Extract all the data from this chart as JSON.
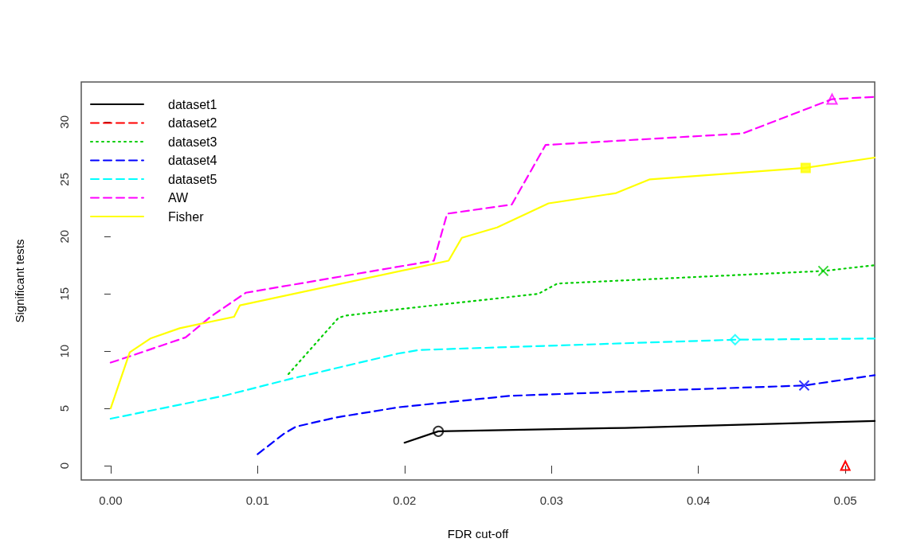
{
  "chart_data": {
    "type": "line",
    "xlabel": "FDR cut-off",
    "ylabel": "Significant tests",
    "xlim": [
      -0.002,
      0.052
    ],
    "xticks": [
      {
        "value": 0,
        "label": "0.00"
      },
      {
        "value": 0.01,
        "label": "0.01"
      },
      {
        "value": 0.02,
        "label": "0.02"
      },
      {
        "value": 0.03,
        "label": "0.03"
      },
      {
        "value": 0.04,
        "label": "0.04"
      },
      {
        "value": 0.05,
        "label": "0.05"
      }
    ],
    "ylim": [
      -1.25,
      33.5
    ],
    "yticks": [
      0,
      5,
      10,
      15,
      20,
      25,
      30
    ],
    "grid": false,
    "legend": "top left",
    "series": [
      {
        "name": "dataset1",
        "color": "#000000",
        "line_style": "solid",
        "x": [
          0.02,
          0.0223,
          0.035,
          0.052
        ],
        "values": [
          2,
          3,
          3.3,
          3.9
        ]
      },
      {
        "name": "dataset2",
        "color": "#ff0000",
        "line_style": "dashed",
        "marker": "triangle",
        "x": [
          0.05
        ],
        "values": [
          0
        ]
      },
      {
        "name": "dataset3",
        "color": "#00cd00",
        "line_style": "dotted",
        "x": [
          0.0121,
          0.0155,
          0.016,
          0.0199,
          0.0291,
          0.0304,
          0.0485,
          0.052
        ],
        "values": [
          8,
          12.9,
          13.1,
          13.7,
          15,
          15.9,
          17,
          17.5
        ]
      },
      {
        "name": "dataset4",
        "color": "#0000ff",
        "line_style": "dashed",
        "x": [
          0.01,
          0.0118,
          0.0126,
          0.0153,
          0.0196,
          0.0272,
          0.0359,
          0.0472,
          0.052
        ],
        "values": [
          1,
          2.8,
          3.4,
          4.2,
          5.1,
          6.1,
          6.5,
          7,
          7.9
        ]
      },
      {
        "name": "dataset5",
        "color": "#00ffff",
        "line_style": "dashed",
        "x": [
          0,
          0.0077,
          0.012,
          0.0196,
          0.021,
          0.0425,
          0.052
        ],
        "values": [
          4.1,
          6.1,
          7.5,
          9.8,
          10.1,
          11,
          11.1
        ]
      },
      {
        "name": "AW",
        "color": "#ff00ff",
        "line_style": "dashed",
        "x": [
          0,
          0.0012,
          0.0051,
          0.0068,
          0.0092,
          0.022,
          0.0229,
          0.0273,
          0.0296,
          0.043,
          0.0491,
          0.052
        ],
        "values": [
          9,
          9.5,
          11.2,
          13,
          15.1,
          17.9,
          22,
          22.8,
          28,
          29,
          32,
          32.2
        ]
      },
      {
        "name": "Fisher",
        "color": "#ffff00",
        "line_style": "solid",
        "x": [
          0,
          0.0013,
          0.0027,
          0.0047,
          0.0084,
          0.0088,
          0.023,
          0.0239,
          0.0263,
          0.0298,
          0.0344,
          0.0367,
          0.0473,
          0.052
        ],
        "values": [
          5,
          9.9,
          11.1,
          12,
          13,
          14,
          17.9,
          19.9,
          20.8,
          22.9,
          23.8,
          25,
          26,
          26.9
        ]
      },
      {
        "type": "scatter",
        "color": "#000000",
        "marker": "circle",
        "x": [
          0.0223
        ],
        "values": [
          3
        ]
      },
      {
        "type": "scatter",
        "color": "#00cd00",
        "marker": "cross",
        "x": [
          0.0485
        ],
        "values": [
          17
        ]
      },
      {
        "type": "scatter",
        "color": "#0000ff",
        "marker": "cross",
        "x": [
          0.0472
        ],
        "values": [
          7
        ]
      },
      {
        "type": "scatter",
        "color": "#00ffff",
        "marker": "diamond",
        "x": [
          0.0425
        ],
        "values": [
          11
        ]
      },
      {
        "type": "scatter",
        "color": "#ff00ff",
        "marker": "triangle",
        "x": [
          0.0491
        ],
        "values": [
          32
        ]
      },
      {
        "type": "scatter",
        "color": "#ffff00",
        "marker": "square",
        "x": [
          0.0473
        ],
        "values": [
          26
        ]
      }
    ]
  }
}
